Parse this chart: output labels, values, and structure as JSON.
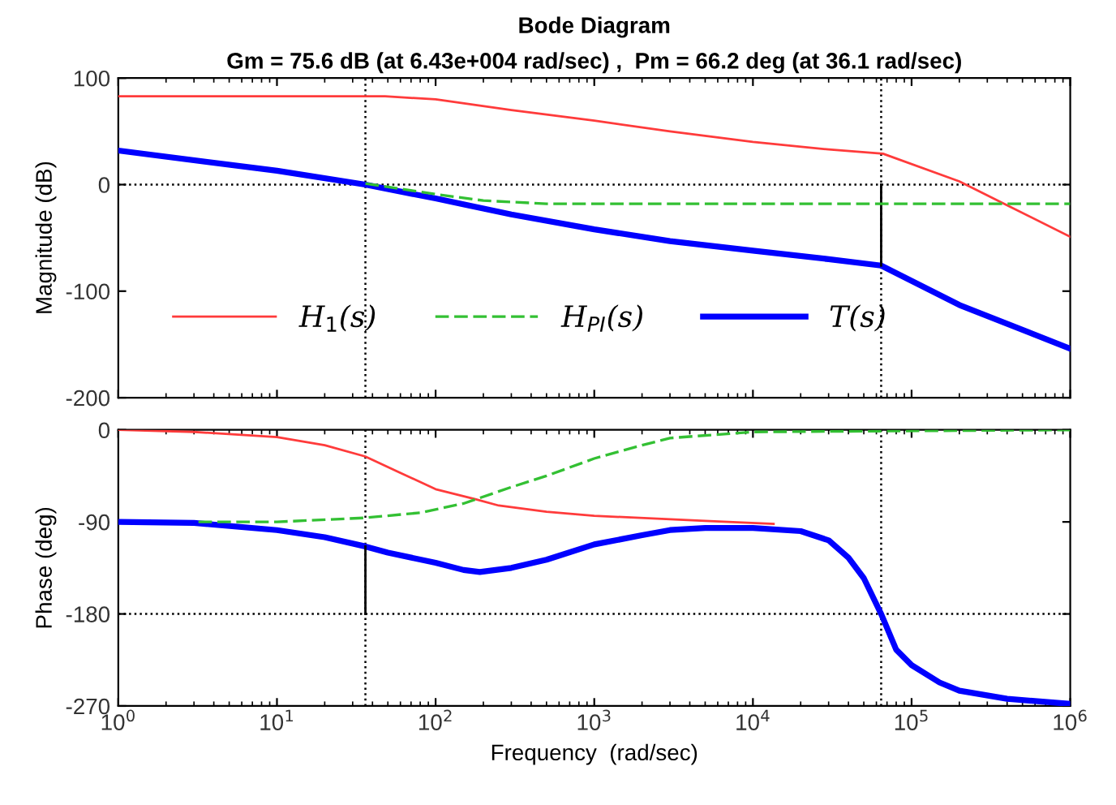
{
  "chart_data": [
    {
      "type": "line",
      "title": "Bode Diagram",
      "subtitle": "Gm = 75.6 dB (at 6.43e+004 rad/sec) ,  Pm = 66.2 deg (at 36.1 rad/sec)",
      "ylabel": "Magnitude (dB)",
      "log": "x",
      "xlim": [
        1,
        1000000
      ],
      "xticks": [
        {
          "value": 1,
          "label": null
        },
        {
          "value": 10,
          "label": null
        },
        {
          "value": 100,
          "label": null
        },
        {
          "value": 1000,
          "label": null
        },
        {
          "value": 10000,
          "label": null
        },
        {
          "value": 100000,
          "label": null
        },
        {
          "value": 1000000,
          "label": null
        }
      ],
      "ylim": [
        -200,
        100
      ],
      "yticks": [
        -200,
        -100,
        0,
        100
      ],
      "tick_labels": "y",
      "grid": false,
      "legend": "bottom left",
      "series": [
        {
          "name": "H$_{1}$(s)",
          "color": "#ff3b3b",
          "line_style": "solid",
          "x": [
            1,
            48,
            100,
            300,
            1000,
            3000,
            10000,
            30000,
            66000,
            200000,
            1000000
          ],
          "values": [
            83,
            83,
            80,
            70,
            60,
            50,
            40,
            33,
            29,
            3,
            -49
          ]
        },
        {
          "name": "H$_{PI}$(s)",
          "color": "#33c033",
          "line_style": "dashed",
          "x": [
            36.1,
            60,
            100,
            200,
            500,
            1000000
          ],
          "values": [
            1,
            -4,
            -9,
            -15,
            -18,
            -18
          ]
        },
        {
          "name": "T(s)",
          "color": "#0000ff",
          "line_style": "solid",
          "x": [
            1,
            10,
            36.1,
            100,
            300,
            1000,
            3000,
            10000,
            30000,
            64300,
            200000,
            1000000
          ],
          "values": [
            32,
            13,
            0,
            -13,
            -28,
            -42,
            -53,
            -62,
            -70,
            -76,
            -113,
            -154
          ]
        },
        {
          "color": "#000000",
          "line_style": "solid",
          "x": [
            64300,
            64300
          ],
          "values": [
            0,
            -76
          ]
        }
      ],
      "ref_lines": [
        {
          "axis": "y",
          "value": 0,
          "color": "#000000",
          "line_style": "dotted"
        },
        {
          "axis": "x",
          "value": 36.1,
          "color": "#000000",
          "line_style": "dotted"
        },
        {
          "axis": "x",
          "value": 64300,
          "color": "#000000",
          "line_style": "dotted"
        }
      ]
    },
    {
      "type": "line",
      "xlabel": "Frequency  (rad/sec)",
      "ylabel": "Phase (deg)",
      "log": "x",
      "xlim": [
        1,
        1000000
      ],
      "xticks": [
        {
          "value": 1,
          "label": "10$^{0}$"
        },
        {
          "value": 10,
          "label": "10$^{1}$"
        },
        {
          "value": 100,
          "label": "10$^{2}$"
        },
        {
          "value": 1000,
          "label": "10$^{3}$"
        },
        {
          "value": 10000,
          "label": "10$^{4}$"
        },
        {
          "value": 100000,
          "label": "10$^{5}$"
        },
        {
          "value": 1000000,
          "label": "10$^{6}$"
        }
      ],
      "ylim": [
        -270,
        0
      ],
      "yticks": [
        -270,
        -180,
        -90,
        0
      ],
      "grid": false,
      "series": [
        {
          "color": "#ff3b3b",
          "line_style": "solid",
          "x": [
            1,
            3,
            10,
            20,
            36,
            60,
            100,
            180,
            250,
            500,
            1000,
            5000,
            13500
          ],
          "values": [
            0,
            -2,
            -7,
            -15,
            -26,
            -42,
            -58,
            -68,
            -74,
            -80,
            -84,
            -89,
            -92
          ]
        },
        {
          "color": "#33c033",
          "line_style": "dashed",
          "x": [
            3.2,
            10,
            36,
            80,
            150,
            300,
            500,
            1000,
            2000,
            3000,
            10000,
            1000000
          ],
          "values": [
            -90,
            -90,
            -86,
            -81,
            -72,
            -56,
            -45,
            -28,
            -15,
            -8,
            -2,
            0
          ]
        },
        {
          "color": "#0000ff",
          "line_style": "solid",
          "x": [
            1,
            3,
            10,
            20,
            36.1,
            50,
            100,
            150,
            190,
            300,
            500,
            1000,
            2000,
            3000,
            5000,
            10000,
            20000,
            30000,
            40000,
            50000,
            64300,
            80000,
            100000,
            150000,
            200000,
            400000,
            1000000
          ],
          "values": [
            -90,
            -91,
            -98,
            -105,
            -114,
            -120,
            -130,
            -137,
            -139,
            -135,
            -127,
            -112,
            -103,
            -98,
            -96,
            -96,
            -99,
            -108,
            -125,
            -145,
            -180,
            -215,
            -230,
            -247,
            -255,
            -263,
            -268
          ]
        },
        {
          "color": "#000000",
          "line_style": "solid",
          "x": [
            36.1,
            36.1
          ],
          "values": [
            -180,
            -114
          ]
        }
      ],
      "ref_lines": [
        {
          "axis": "y",
          "value": -180,
          "color": "#000000",
          "line_style": "dotted"
        },
        {
          "axis": "x",
          "value": 36.1,
          "color": "#000000",
          "line_style": "dotted"
        },
        {
          "axis": "x",
          "value": 64300,
          "color": "#000000",
          "line_style": "dotted"
        }
      ]
    }
  ]
}
